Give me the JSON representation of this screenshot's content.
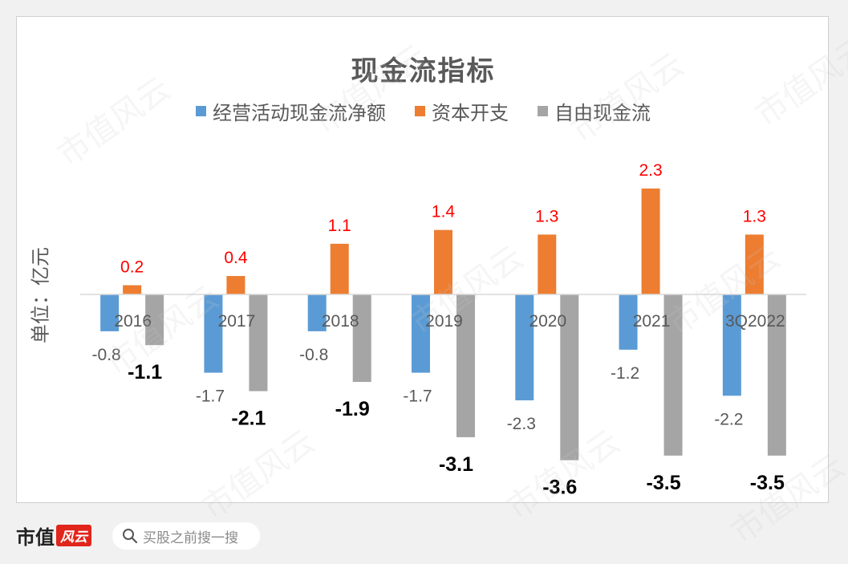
{
  "chart_data": {
    "type": "bar",
    "title": "现金流指标",
    "ylabel": "单位：亿元",
    "xlabel": "",
    "categories": [
      "2016",
      "2017",
      "2018",
      "2019",
      "2020",
      "2021",
      "3Q2022"
    ],
    "series": [
      {
        "name": "经营活动现金流净额",
        "color": "#5b9bd5",
        "values": [
          -0.8,
          -1.7,
          -0.8,
          -1.7,
          -2.3,
          -1.2,
          -2.2
        ],
        "label_color": "#595959",
        "label_bold": false
      },
      {
        "name": "资本开支",
        "color": "#ed7d31",
        "values": [
          0.2,
          0.4,
          1.1,
          1.4,
          1.3,
          2.3,
          1.3
        ],
        "label_color": "#ff0000",
        "label_bold": false
      },
      {
        "name": "自由现金流",
        "color": "#a5a5a5",
        "values": [
          -1.1,
          -2.1,
          -1.9,
          -3.1,
          -3.6,
          -3.5,
          -3.5
        ],
        "label_color": "#000000",
        "label_bold": true
      }
    ],
    "ylim": [
      -4.3,
      2.8
    ],
    "grid": false,
    "legend_position": "top"
  },
  "footer": {
    "brand": "市值",
    "brand_mark": "风云",
    "search_placeholder": "买股之前搜一搜"
  },
  "watermark_text": "市值风云"
}
